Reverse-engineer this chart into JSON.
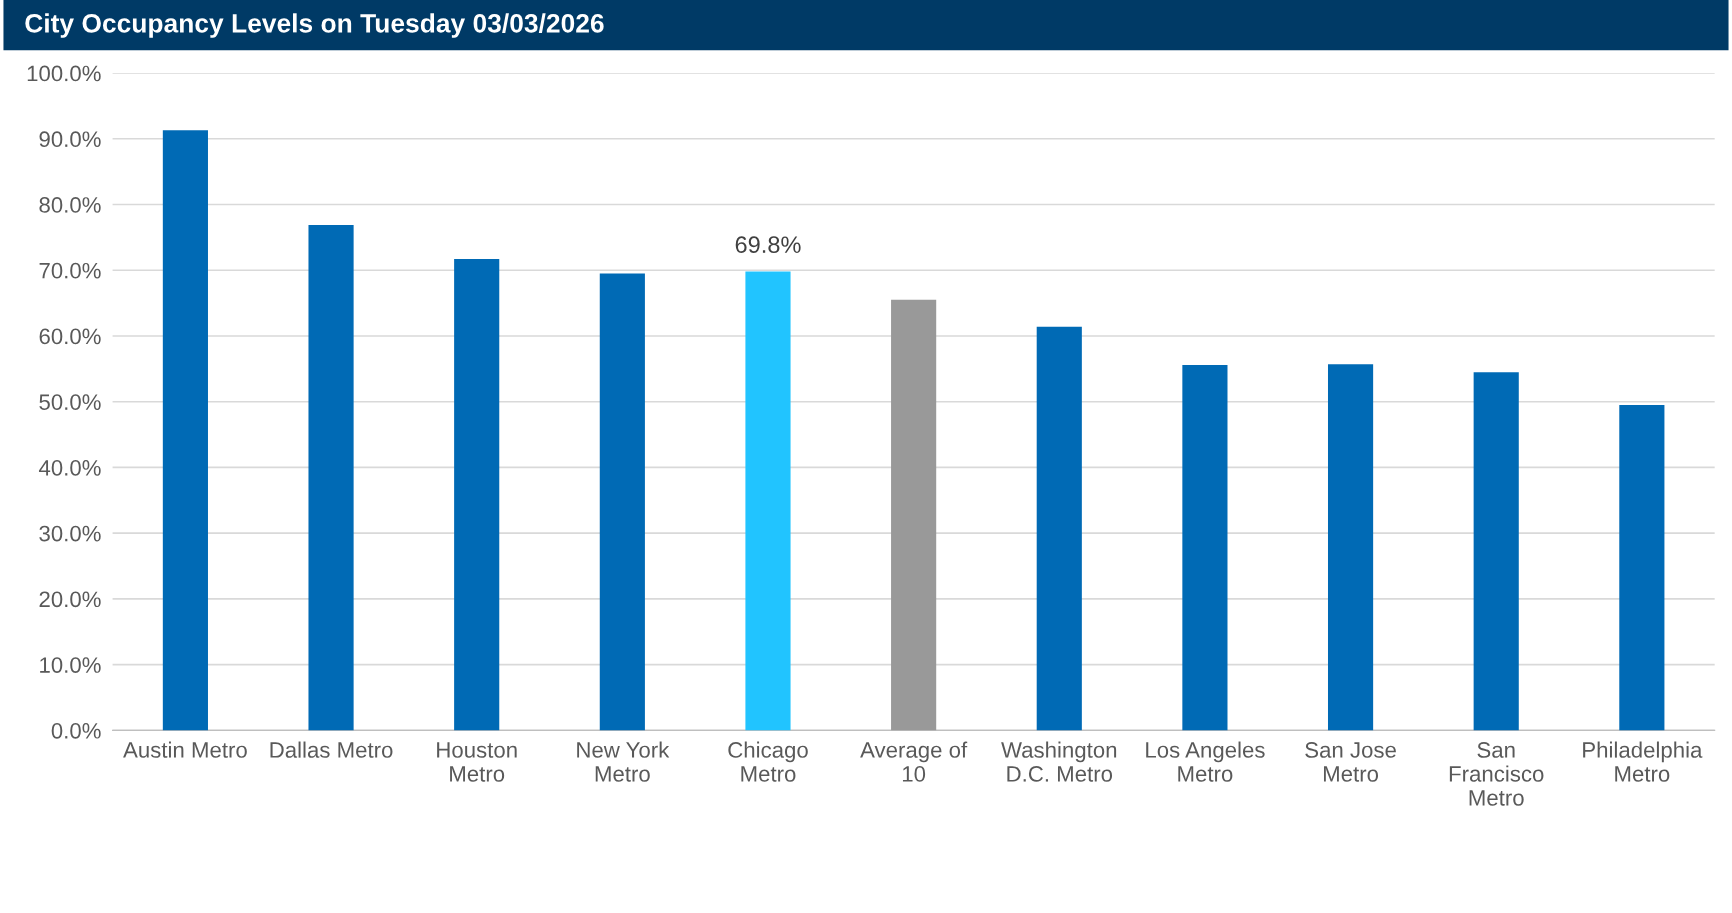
{
  "chart_data": {
    "type": "bar",
    "title": "City Occupancy Levels on Tuesday 03/03/2026",
    "categories": [
      "Austin Metro",
      "Dallas Metro",
      "Houston\nMetro",
      "New York\nMetro",
      "Chicago\nMetro",
      "Average of\n10",
      "Washington\nD.C. Metro",
      "Los Angeles\nMetro",
      "San Jose\nMetro",
      "San\nFrancisco\nMetro",
      "Philadelphia\nMetro"
    ],
    "values": [
      91.3,
      76.9,
      71.7,
      69.5,
      69.8,
      65.5,
      61.4,
      55.6,
      55.7,
      54.5,
      49.5
    ],
    "colors": [
      "#006ab5",
      "#006ab5",
      "#006ab5",
      "#006ab5",
      "#21c4ff",
      "#999999",
      "#006ab5",
      "#006ab5",
      "#006ab5",
      "#006ab5",
      "#006ab5"
    ],
    "value_labels": [
      null,
      null,
      null,
      null,
      "69.8%",
      null,
      null,
      null,
      null,
      null,
      null
    ],
    "ylim": [
      0,
      100
    ],
    "yticks": [
      {
        "value": 0,
        "label": "0.0%"
      },
      {
        "value": 10,
        "label": "10.0%"
      },
      {
        "value": 20,
        "label": "20.0%"
      },
      {
        "value": 30,
        "label": "30.0%"
      },
      {
        "value": 40,
        "label": "40.0%"
      },
      {
        "value": 50,
        "label": "50.0%"
      },
      {
        "value": 60,
        "label": "60.0%"
      },
      {
        "value": 70,
        "label": "70.0%"
      },
      {
        "value": 80,
        "label": "80.0%"
      },
      {
        "value": 90,
        "label": "90.0%"
      },
      {
        "value": 100,
        "label": "100.0%"
      }
    ],
    "grid": "y",
    "legend": false
  }
}
